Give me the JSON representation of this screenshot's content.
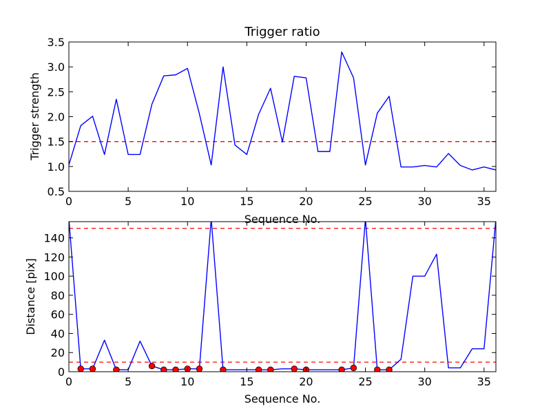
{
  "chart_data": [
    {
      "type": "line",
      "title": "Trigger ratio",
      "xlabel": "Sequence No.",
      "ylabel": "Trigger strength",
      "xlim": [
        0,
        36
      ],
      "ylim": [
        0.5,
        3.5
      ],
      "xticks": [
        0,
        5,
        10,
        15,
        20,
        25,
        30,
        35
      ],
      "yticks": [
        0.5,
        1.0,
        1.5,
        2.0,
        2.5,
        3.0,
        3.5
      ],
      "ytick_labels": [
        "0.5",
        "1.0",
        "1.5",
        "2.0",
        "2.5",
        "3.0",
        "3.5"
      ],
      "grid": false,
      "series": [
        {
          "color": "#0000ff",
          "x": [
            0,
            1,
            2,
            3,
            4,
            5,
            6,
            7,
            8,
            9,
            10,
            11,
            12,
            13,
            14,
            15,
            16,
            17,
            18,
            19,
            20,
            21,
            22,
            23,
            24,
            25,
            26,
            27,
            28,
            29,
            30,
            31,
            32,
            33,
            34,
            35,
            36
          ],
          "y": [
            1.03,
            1.82,
            2.01,
            1.24,
            2.35,
            1.24,
            1.24,
            2.25,
            2.82,
            2.84,
            2.97,
            2.06,
            1.03,
            3.0,
            1.43,
            1.24,
            2.05,
            2.57,
            1.49,
            2.81,
            2.78,
            1.3,
            1.3,
            3.3,
            2.78,
            1.03,
            2.07,
            2.41,
            0.99,
            0.99,
            1.02,
            0.99,
            1.26,
            1.02,
            0.93,
            0.99,
            0.93
          ]
        }
      ],
      "threshold": {
        "y": 1.5,
        "color": "#ff0000",
        "style": "dashed"
      }
    },
    {
      "type": "line",
      "title": "",
      "xlabel": "Sequence No.",
      "ylabel": "Distance [pix]",
      "xlim": [
        0,
        36
      ],
      "ylim": [
        0,
        157
      ],
      "xticks": [
        0,
        5,
        10,
        15,
        20,
        25,
        30,
        35
      ],
      "yticks": [
        0,
        20,
        40,
        60,
        80,
        100,
        120,
        140
      ],
      "grid": false,
      "series": [
        {
          "color": "#0000ff",
          "x": [
            0,
            1,
            2,
            3,
            4,
            5,
            6,
            7,
            8,
            9,
            10,
            11,
            12,
            13,
            14,
            15,
            16,
            17,
            18,
            19,
            20,
            21,
            22,
            23,
            24,
            25,
            26,
            27,
            28,
            29,
            30,
            31,
            32,
            33,
            34,
            35,
            36
          ],
          "y": [
            160,
            3,
            3,
            33,
            2,
            2,
            32,
            6,
            2,
            2,
            3,
            3,
            160,
            2,
            2,
            2,
            2,
            2,
            3,
            3,
            2,
            2,
            2,
            2,
            4,
            160,
            2,
            2,
            13,
            100,
            100,
            123,
            4,
            4,
            24,
            24,
            160
          ]
        }
      ],
      "markers": {
        "color": "#ff0000",
        "x": [
          1,
          2,
          4,
          7,
          8,
          9,
          10,
          11,
          13,
          16,
          17,
          19,
          20,
          23,
          24,
          26,
          27
        ],
        "y": [
          3,
          3,
          2,
          6,
          2,
          2,
          3,
          3,
          2,
          2,
          2,
          3,
          2,
          2,
          4,
          2,
          2
        ]
      },
      "thresholds": [
        {
          "y": 150,
          "color": "#ff0000",
          "style": "dashed"
        },
        {
          "y": 10,
          "color": "#ff0000",
          "style": "dashed"
        }
      ]
    }
  ]
}
